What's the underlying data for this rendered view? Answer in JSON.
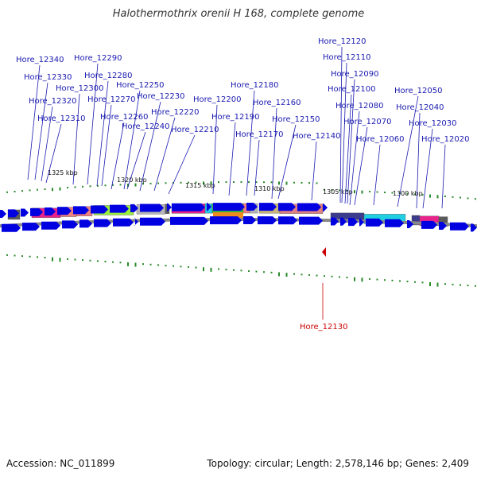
{
  "title": "Halothermothrix orenii H 168, complete genome",
  "accession": "Accession: NC_011899",
  "summary": "Topology: circular; Length: 2,578,146 bp; Genes: 2,409",
  "colors": {
    "label": "#1a1ab0",
    "highlight": "#cc0000",
    "gene": "#0000e0",
    "backbone": "#777777",
    "tick": "#2a8a2a"
  },
  "scale_labels": [
    "1325 kbp",
    "1320 kbp",
    "1315 kbp",
    "1310 kbp",
    "1305 kbp",
    "1300 kbp"
  ],
  "gene_labels": [
    "Hore_12340",
    "Hore_12330",
    "Hore_12320",
    "Hore_12310",
    "Hore_12300",
    "Hore_12290",
    "Hore_12280",
    "Hore_12270",
    "Hore_12260",
    "Hore_12250",
    "Hore_12240",
    "Hore_12230",
    "Hore_12220",
    "Hore_12210",
    "Hore_12200",
    "Hore_12190",
    "Hore_12180",
    "Hore_12170",
    "Hore_12160",
    "Hore_12150",
    "Hore_12140",
    "Hore_12120",
    "Hore_12110",
    "Hore_12100",
    "Hore_12090",
    "Hore_12080",
    "Hore_12070",
    "Hore_12060",
    "Hore_12050",
    "Hore_12040",
    "Hore_12030",
    "Hore_12020"
  ],
  "selected_gene": "Hore_12130",
  "cog_palette": [
    "#e8238c",
    "#f08080",
    "#9aef3a",
    "#b5b5b5",
    "#5a5a5a",
    "#20c8e8",
    "#3ab83a",
    "#f08c1e",
    "#c8b478",
    "#e08080",
    "#3c3c8c",
    "#20d0e0"
  ]
}
